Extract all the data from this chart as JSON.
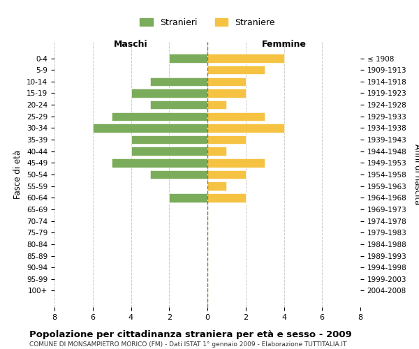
{
  "age_groups": [
    "0-4",
    "5-9",
    "10-14",
    "15-19",
    "20-24",
    "25-29",
    "30-34",
    "35-39",
    "40-44",
    "45-49",
    "50-54",
    "55-59",
    "60-64",
    "65-69",
    "70-74",
    "75-79",
    "80-84",
    "85-89",
    "90-94",
    "95-99",
    "100+"
  ],
  "birth_years": [
    "2004-2008",
    "1999-2003",
    "1994-1998",
    "1989-1993",
    "1984-1988",
    "1979-1983",
    "1974-1978",
    "1969-1973",
    "1964-1968",
    "1959-1963",
    "1954-1958",
    "1949-1953",
    "1944-1948",
    "1939-1943",
    "1934-1938",
    "1929-1933",
    "1924-1928",
    "1919-1923",
    "1914-1918",
    "1909-1913",
    "≤ 1908"
  ],
  "males": [
    2,
    0,
    3,
    4,
    3,
    5,
    6,
    4,
    4,
    5,
    3,
    0,
    2,
    0,
    0,
    0,
    0,
    0,
    0,
    0,
    0
  ],
  "females": [
    4,
    3,
    2,
    2,
    1,
    3,
    4,
    2,
    1,
    3,
    2,
    1,
    2,
    0,
    0,
    0,
    0,
    0,
    0,
    0,
    0
  ],
  "male_color": "#7bac5b",
  "female_color": "#f5c242",
  "male_label": "Stranieri",
  "female_label": "Straniere",
  "title": "Popolazione per cittadinanza straniera per età e sesso - 2009",
  "subtitle": "COMUNE DI MONSAMPIETRO MORICO (FM) - Dati ISTAT 1° gennaio 2009 - Elaborazione TUTTITALIA.IT",
  "xlabel_left": "Maschi",
  "xlabel_right": "Femmine",
  "ylabel_left": "Fasce di età",
  "ylabel_right": "Anni di nascita",
  "xlim": 8,
  "background_color": "#ffffff",
  "grid_color": "#cccccc",
  "center_line_color": "#808040"
}
